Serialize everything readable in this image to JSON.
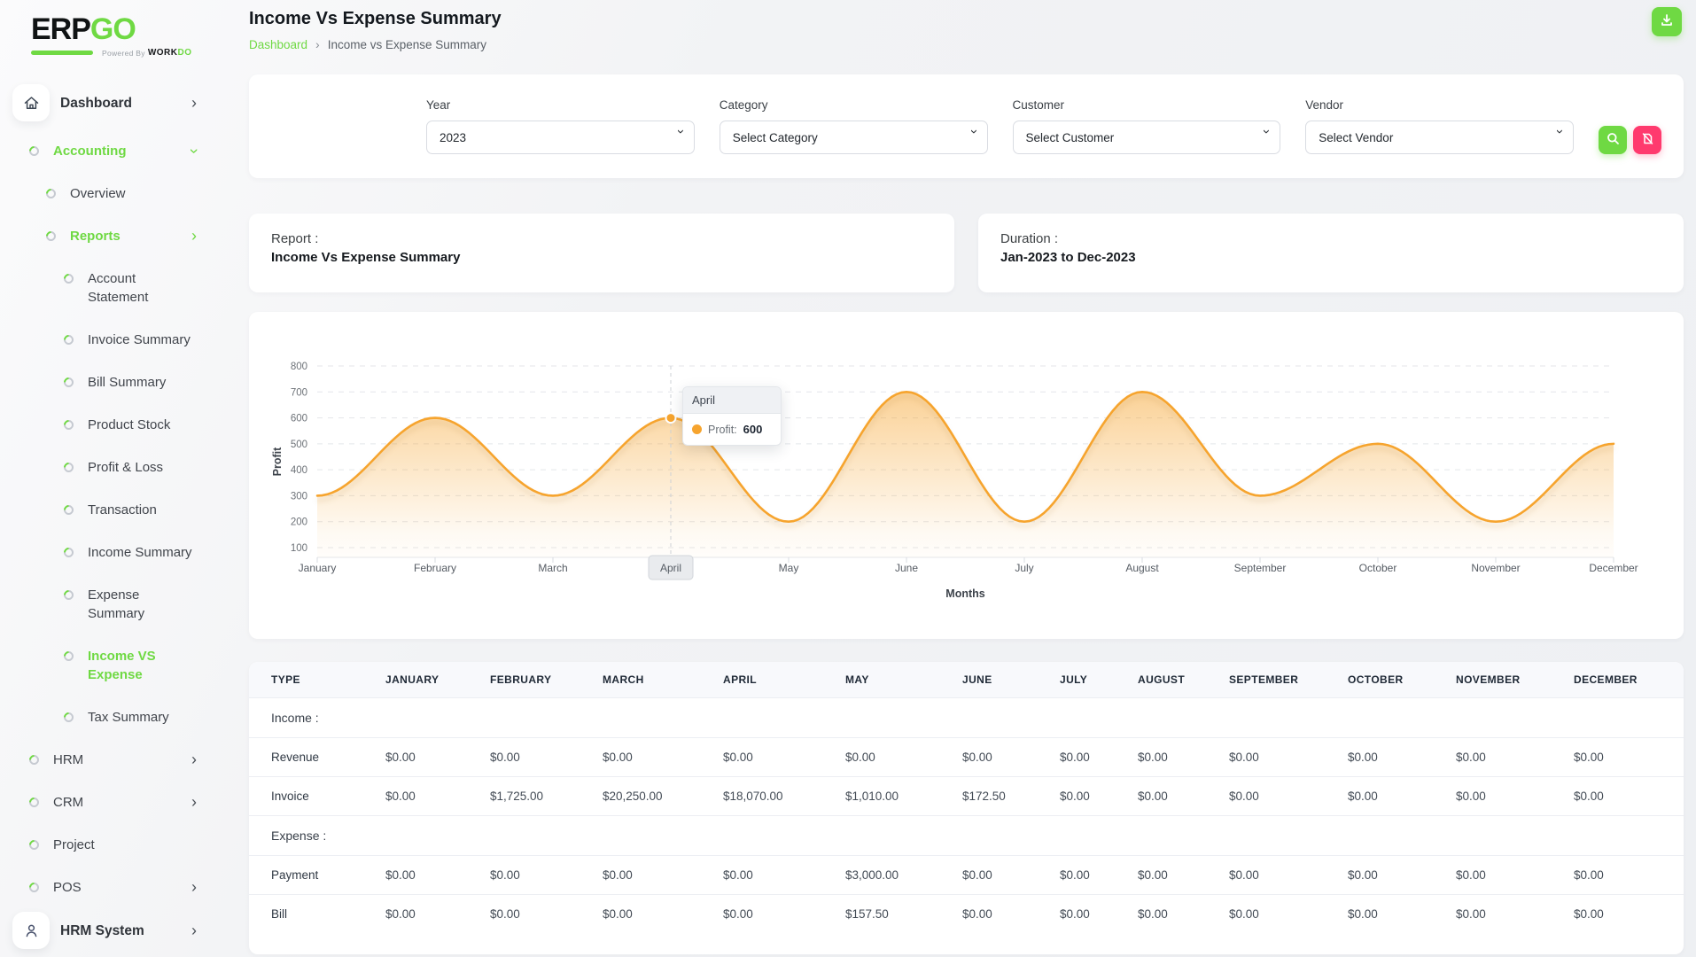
{
  "app": {
    "logo_primary": "ERP",
    "logo_secondary": "GO",
    "powered_by": "Powered By",
    "powered_brand_primary": "WORK",
    "powered_brand_secondary": "DO"
  },
  "header": {
    "title": "Income Vs Expense Summary",
    "breadcrumb": [
      {
        "label": "Dashboard",
        "link": true
      },
      {
        "label": "Income vs Expense Summary",
        "link": false
      }
    ]
  },
  "toolbar": {
    "download_button": "download"
  },
  "sidebar": {
    "items": [
      {
        "label": "Dashboard",
        "icon": "home",
        "chevron": "right",
        "level": 0,
        "active": false
      },
      {
        "label": "Accounting",
        "icon": "dot",
        "chevron": "down",
        "level": 1,
        "active": true
      },
      {
        "label": "Overview",
        "icon": "dot",
        "level": 2,
        "active": false
      },
      {
        "label": "Reports",
        "icon": "dot",
        "chevron": "right",
        "level": 2,
        "active": true
      },
      {
        "label": "Account Statement",
        "lines": [
          "Account",
          "Statement"
        ],
        "icon": "dot",
        "level": 3,
        "active": false
      },
      {
        "label": "Invoice Summary",
        "icon": "dot",
        "level": 3,
        "active": false
      },
      {
        "label": "Bill Summary",
        "icon": "dot",
        "level": 3,
        "active": false
      },
      {
        "label": "Product Stock",
        "icon": "dot",
        "level": 3,
        "active": false
      },
      {
        "label": "Profit & Loss",
        "icon": "dot",
        "level": 3,
        "active": false
      },
      {
        "label": "Transaction",
        "icon": "dot",
        "level": 3,
        "active": false
      },
      {
        "label": "Income Summary",
        "icon": "dot",
        "level": 3,
        "active": false
      },
      {
        "label": "Expense Summary",
        "lines": [
          "Expense",
          "Summary"
        ],
        "icon": "dot",
        "level": 3,
        "active": false
      },
      {
        "label": "Income VS Expense",
        "lines": [
          "Income VS",
          "Expense"
        ],
        "icon": "dot",
        "level": 3,
        "active": true
      },
      {
        "label": "Tax Summary",
        "icon": "dot",
        "level": 3,
        "active": false
      },
      {
        "label": "HRM",
        "icon": "dot",
        "chevron": "right",
        "level": 1,
        "active": false
      },
      {
        "label": "CRM",
        "icon": "dot",
        "chevron": "right",
        "level": 1,
        "active": false
      },
      {
        "label": "Project",
        "icon": "dot",
        "level": 1,
        "active": false
      },
      {
        "label": "POS",
        "icon": "dot",
        "chevron": "right",
        "level": 1,
        "active": false
      },
      {
        "label": "HRM System",
        "icon": "user",
        "chevron": "right",
        "level": 0,
        "active": false
      }
    ]
  },
  "filters": {
    "year": {
      "label": "Year",
      "value": "2023"
    },
    "category": {
      "label": "Category",
      "value": "Select Category"
    },
    "customer": {
      "label": "Customer",
      "value": "Select Customer"
    },
    "vendor": {
      "label": "Vendor",
      "value": "Select Vendor"
    },
    "search_button": "search",
    "reset_button": "reset"
  },
  "summary_cards": {
    "report": {
      "label": "Report :",
      "value": "Income Vs Expense Summary"
    },
    "duration": {
      "label": "Duration :",
      "value": "Jan-2023 to Dec-2023"
    }
  },
  "chart_data": {
    "type": "area",
    "x": [
      "January",
      "February",
      "March",
      "April",
      "May",
      "June",
      "July",
      "August",
      "September",
      "October",
      "November",
      "December"
    ],
    "series": [
      {
        "name": "Profit",
        "values": [
          300,
          600,
          300,
          600,
          200,
          700,
          200,
          700,
          300,
          500,
          200,
          500
        ]
      }
    ],
    "xlabel": "Months",
    "ylabel": "Profit",
    "ylim": [
      100,
      800
    ],
    "yticks": [
      100,
      200,
      300,
      400,
      500,
      600,
      700,
      800
    ],
    "grid": "dashed-horizontal",
    "line_color": "#f6a42e",
    "highlighted_month": "April",
    "tooltip": {
      "month": "April",
      "series_label": "Profit:",
      "value": "600"
    }
  },
  "table": {
    "columns": [
      "TYPE",
      "JANUARY",
      "FEBRUARY",
      "MARCH",
      "APRIL",
      "MAY",
      "JUNE",
      "JULY",
      "AUGUST",
      "SEPTEMBER",
      "OCTOBER",
      "NOVEMBER",
      "DECEMBER"
    ],
    "sections": [
      {
        "label": "Income :",
        "rows": [
          {
            "type": "Revenue",
            "values": [
              "$0.00",
              "$0.00",
              "$0.00",
              "$0.00",
              "$0.00",
              "$0.00",
              "$0.00",
              "$0.00",
              "$0.00",
              "$0.00",
              "$0.00",
              "$0.00"
            ]
          },
          {
            "type": "Invoice",
            "values": [
              "$0.00",
              "$1,725.00",
              "$20,250.00",
              "$18,070.00",
              "$1,010.00",
              "$172.50",
              "$0.00",
              "$0.00",
              "$0.00",
              "$0.00",
              "$0.00",
              "$0.00"
            ]
          }
        ]
      },
      {
        "label": "Expense :",
        "rows": [
          {
            "type": "Payment",
            "values": [
              "$0.00",
              "$0.00",
              "$0.00",
              "$0.00",
              "$3,000.00",
              "$0.00",
              "$0.00",
              "$0.00",
              "$0.00",
              "$0.00",
              "$0.00",
              "$0.00"
            ]
          },
          {
            "type": "Bill",
            "values": [
              "$0.00",
              "$0.00",
              "$0.00",
              "$0.00",
              "$157.50",
              "$0.00",
              "$0.00",
              "$0.00",
              "$0.00",
              "$0.00",
              "$0.00",
              "$0.00"
            ]
          }
        ]
      }
    ]
  },
  "colors": {
    "accent_green": "#6fd943",
    "accent_pink": "#ff3a6e",
    "chart_orange": "#f6a42e"
  }
}
